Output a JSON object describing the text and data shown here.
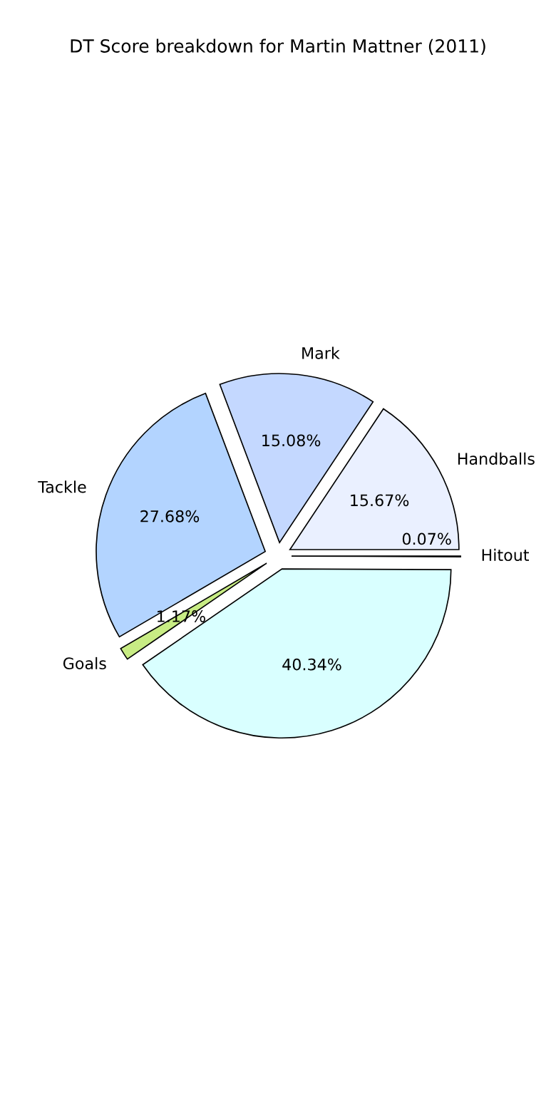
{
  "chart_data": {
    "type": "pie",
    "title": "DT Score breakdown for Martin Mattner (2011)",
    "categories": [
      "Handballs",
      "Mark",
      "Tackle",
      "Goals",
      null,
      "Hitout"
    ],
    "values": [
      15.67,
      15.08,
      27.68,
      1.17,
      40.34,
      0.07
    ],
    "colors": [
      "#eaf0ff",
      "#c4d8ff",
      "#b3d4ff",
      "#c8ec84",
      "#d9ffff",
      "#e8e8e8"
    ],
    "value_labels": [
      "15.67%",
      "15.08%",
      "27.68%",
      "1.17%",
      "40.34%",
      "0.07%"
    ]
  }
}
